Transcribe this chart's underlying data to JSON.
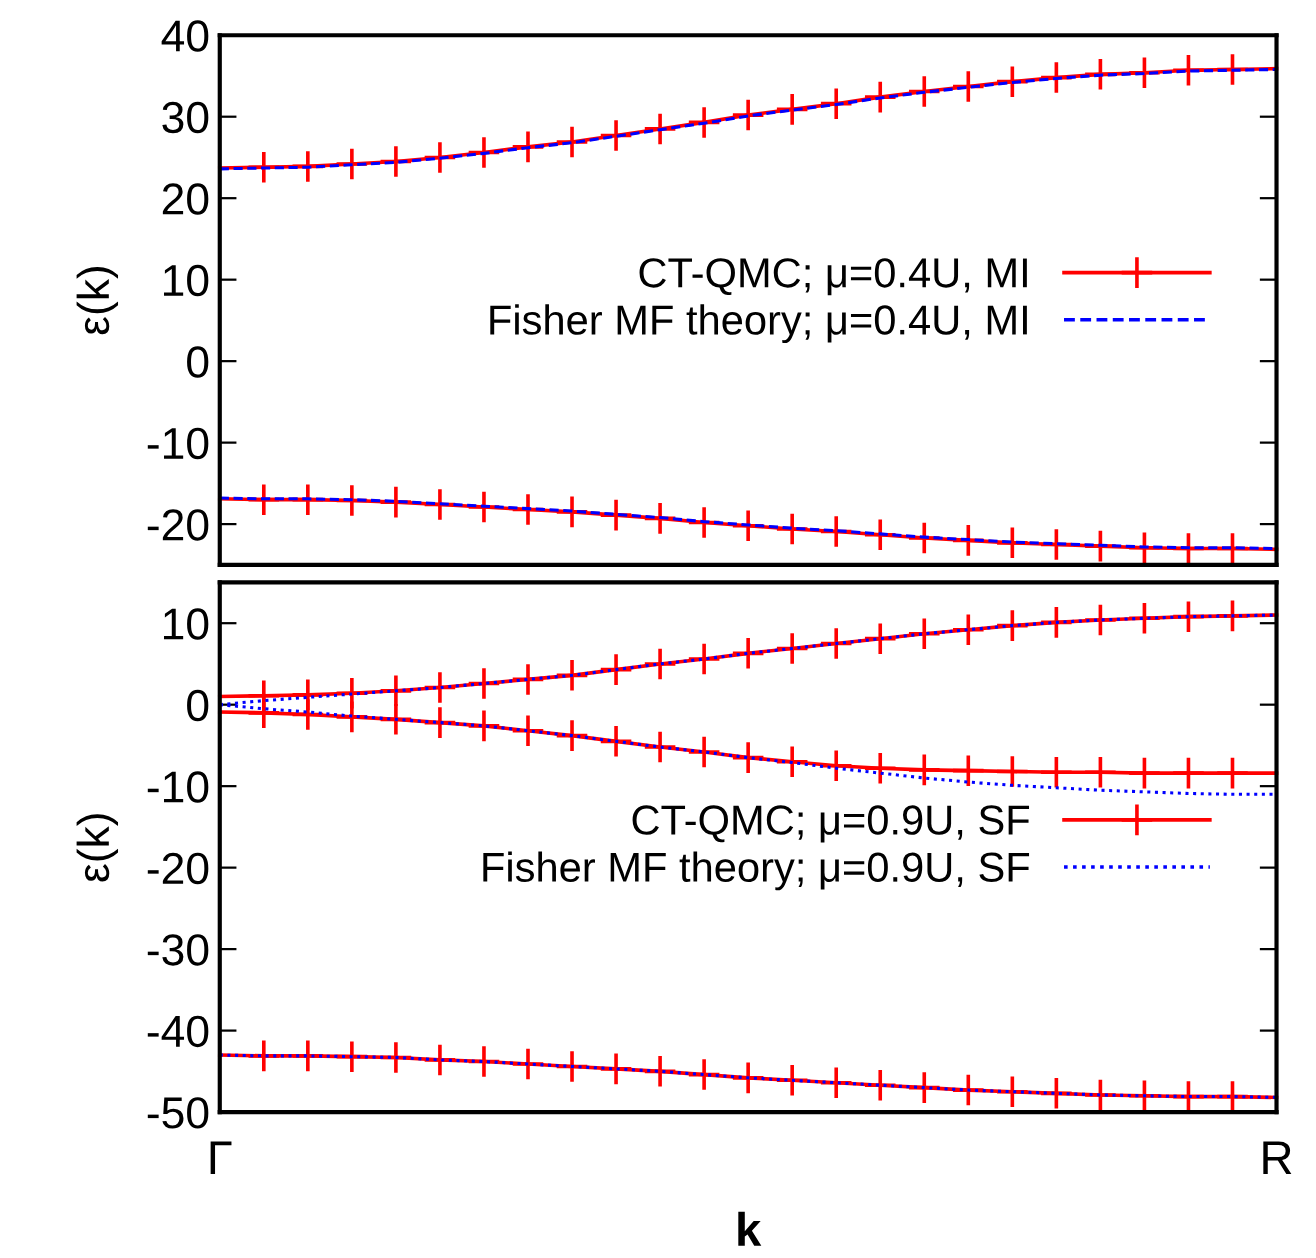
{
  "chart_data": [
    {
      "type": "line",
      "ylabel": "ε(k)",
      "categories": [
        null,
        null,
        null,
        null,
        null,
        null,
        null,
        null,
        null,
        null,
        null,
        null,
        null,
        null,
        null,
        null,
        null,
        null,
        null,
        null,
        null,
        null,
        null,
        null,
        null
      ],
      "ylim": [
        -25,
        40
      ],
      "yticks": [
        -20,
        -10,
        0,
        10,
        20,
        30,
        40
      ],
      "tick_labels": "y",
      "legend": "right",
      "grid": false,
      "series": [
        {
          "name": "CT-QMC; μ=0.4U, MI",
          "color": "#ff0000",
          "marker": "cross",
          "line_style": "solid",
          "values": [
            23.7,
            23.8,
            23.9,
            24.2,
            24.5,
            25.0,
            25.6,
            26.3,
            26.9,
            27.7,
            28.5,
            29.3,
            30.2,
            30.9,
            31.6,
            32.4,
            33.1,
            33.7,
            34.3,
            34.8,
            35.2,
            35.4,
            35.7,
            35.8,
            35.9
          ]
        },
        {
          "color": "#ff0000",
          "marker": "cross",
          "line_style": "solid",
          "values": [
            -16.9,
            -17.0,
            -17.0,
            -17.1,
            -17.3,
            -17.6,
            -17.9,
            -18.2,
            -18.5,
            -18.9,
            -19.3,
            -19.8,
            -20.2,
            -20.6,
            -20.9,
            -21.3,
            -21.7,
            -22.0,
            -22.3,
            -22.5,
            -22.7,
            -22.9,
            -23.0,
            -23.0,
            -23.1
          ]
        },
        {
          "name": "Fisher MF theory; μ=0.4U, MI",
          "color": "#0000ff",
          "marker": "none",
          "line_style": "dashed",
          "values": [
            23.6,
            23.7,
            23.8,
            24.1,
            24.4,
            24.9,
            25.5,
            26.2,
            26.8,
            27.6,
            28.4,
            29.2,
            30.1,
            30.8,
            31.5,
            32.3,
            33.0,
            33.6,
            34.2,
            34.7,
            35.1,
            35.3,
            35.6,
            35.7,
            35.8
          ]
        },
        {
          "color": "#0000ff",
          "marker": "none",
          "line_style": "dashed",
          "values": [
            -16.8,
            -16.9,
            -16.9,
            -17.0,
            -17.2,
            -17.5,
            -17.8,
            -18.1,
            -18.4,
            -18.8,
            -19.2,
            -19.7,
            -20.1,
            -20.5,
            -20.8,
            -21.2,
            -21.6,
            -21.9,
            -22.2,
            -22.4,
            -22.6,
            -22.8,
            -22.9,
            -22.9,
            -23.0
          ]
        }
      ]
    },
    {
      "type": "line",
      "xlabel": "k",
      "ylabel": "ε(k)",
      "categories": [
        "Γ",
        null,
        null,
        null,
        null,
        null,
        null,
        null,
        null,
        null,
        null,
        null,
        null,
        null,
        null,
        null,
        null,
        null,
        null,
        null,
        null,
        null,
        null,
        null,
        "R"
      ],
      "ylim": [
        -50,
        15
      ],
      "yticks": [
        -50,
        -40,
        -30,
        -20,
        -10,
        0,
        10
      ],
      "legend": "right",
      "grid": false,
      "series": [
        {
          "name": "CT-QMC; μ=0.9U, SF",
          "color": "#ff0000",
          "marker": "cross",
          "line_style": "solid",
          "values": [
            1.0,
            1.1,
            1.2,
            1.4,
            1.7,
            2.1,
            2.6,
            3.1,
            3.6,
            4.3,
            5.0,
            5.6,
            6.3,
            6.9,
            7.5,
            8.1,
            8.7,
            9.2,
            9.7,
            10.1,
            10.4,
            10.6,
            10.8,
            10.9,
            11.0
          ]
        },
        {
          "color": "#ff0000",
          "marker": "cross",
          "line_style": "solid",
          "values": [
            -0.9,
            -1.0,
            -1.2,
            -1.5,
            -1.8,
            -2.2,
            -2.6,
            -3.2,
            -3.8,
            -4.5,
            -5.2,
            -5.8,
            -6.5,
            -7.0,
            -7.5,
            -7.8,
            -8.0,
            -8.1,
            -8.2,
            -8.3,
            -8.3,
            -8.4,
            -8.4,
            -8.4,
            -8.4
          ]
        },
        {
          "color": "#ff0000",
          "marker": "cross",
          "line_style": "solid",
          "values": [
            -43.0,
            -43.1,
            -43.1,
            -43.2,
            -43.3,
            -43.6,
            -43.8,
            -44.1,
            -44.4,
            -44.7,
            -45.0,
            -45.4,
            -45.8,
            -46.1,
            -46.4,
            -46.7,
            -47.0,
            -47.3,
            -47.5,
            -47.7,
            -47.9,
            -48.0,
            -48.1,
            -48.1,
            -48.2
          ]
        },
        {
          "name": "Fisher MF theory; μ=0.9U, SF",
          "color": "#0000ff",
          "marker": "none",
          "line_style": "dotted",
          "values": [
            0.0,
            0.5,
            0.9,
            1.3,
            1.7,
            2.1,
            2.6,
            3.1,
            3.6,
            4.3,
            5.0,
            5.6,
            6.3,
            6.9,
            7.5,
            8.1,
            8.7,
            9.2,
            9.7,
            10.1,
            10.4,
            10.6,
            10.8,
            10.9,
            11.0
          ]
        },
        {
          "color": "#0000ff",
          "marker": "none",
          "line_style": "dotted",
          "values": [
            0.0,
            -0.5,
            -0.9,
            -1.4,
            -1.8,
            -2.2,
            -2.6,
            -3.2,
            -3.8,
            -4.5,
            -5.2,
            -5.8,
            -6.5,
            -7.1,
            -7.8,
            -8.4,
            -9.0,
            -9.5,
            -9.9,
            -10.2,
            -10.5,
            -10.7,
            -10.9,
            -11.0,
            -11.0
          ]
        },
        {
          "color": "#0000ff",
          "marker": "none",
          "line_style": "dotted",
          "values": [
            -43.0,
            -43.1,
            -43.1,
            -43.2,
            -43.3,
            -43.6,
            -43.8,
            -44.1,
            -44.4,
            -44.7,
            -45.0,
            -45.4,
            -45.8,
            -46.1,
            -46.4,
            -46.7,
            -47.0,
            -47.3,
            -47.5,
            -47.7,
            -47.9,
            -48.0,
            -48.1,
            -48.1,
            -48.2
          ]
        }
      ]
    }
  ]
}
